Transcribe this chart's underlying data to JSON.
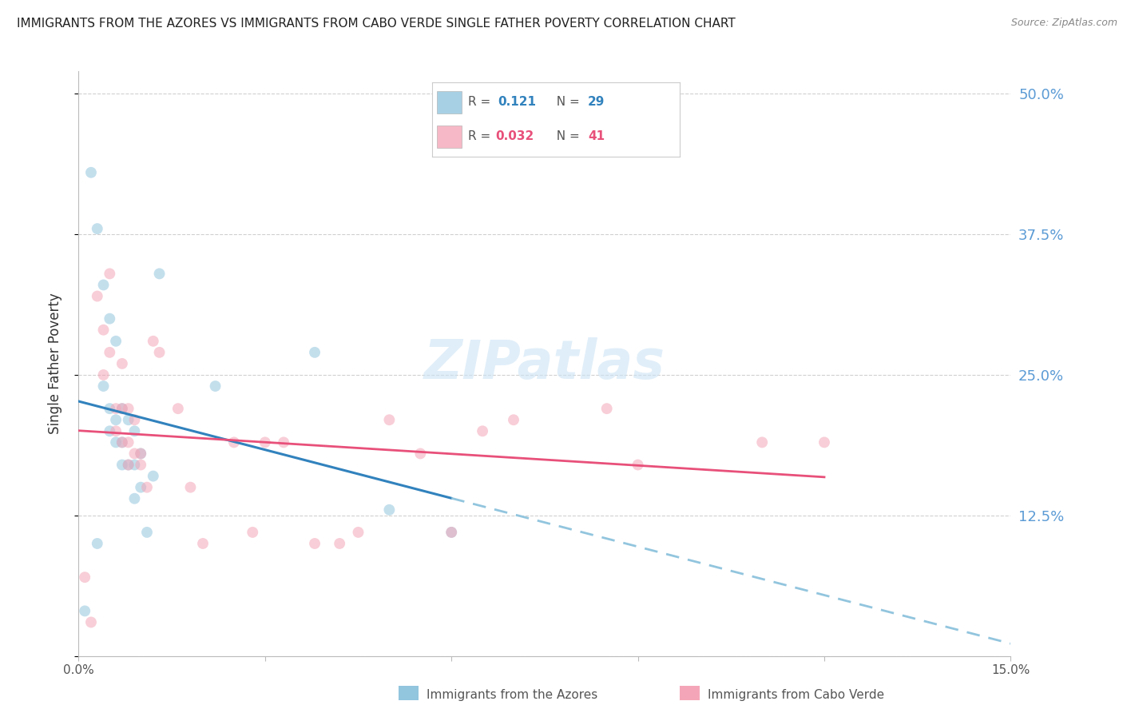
{
  "title": "IMMIGRANTS FROM THE AZORES VS IMMIGRANTS FROM CABO VERDE SINGLE FATHER POVERTY CORRELATION CHART",
  "source": "Source: ZipAtlas.com",
  "ylabel": "Single Father Poverty",
  "y_ticks": [
    0.0,
    0.125,
    0.25,
    0.375,
    0.5
  ],
  "y_tick_labels": [
    "",
    "12.5%",
    "25.0%",
    "37.5%",
    "50.0%"
  ],
  "xlim": [
    0.0,
    0.15
  ],
  "ylim": [
    0.0,
    0.52
  ],
  "watermark": "ZIPatlas",
  "legend_azores_r": "0.121",
  "legend_azores_n": "29",
  "legend_cabo_r": "0.032",
  "legend_cabo_n": "41",
  "azores_color": "#92c5de",
  "cabo_color": "#f4a6b8",
  "trend_azores_color": "#3182bd",
  "trend_cabo_color": "#e8507a",
  "azores_x": [
    0.001,
    0.002,
    0.003,
    0.003,
    0.004,
    0.004,
    0.005,
    0.005,
    0.005,
    0.006,
    0.006,
    0.006,
    0.007,
    0.007,
    0.007,
    0.008,
    0.008,
    0.009,
    0.009,
    0.009,
    0.01,
    0.01,
    0.011,
    0.012,
    0.013,
    0.022,
    0.038,
    0.05,
    0.06
  ],
  "azores_y": [
    0.04,
    0.43,
    0.1,
    0.38,
    0.33,
    0.24,
    0.3,
    0.22,
    0.2,
    0.28,
    0.21,
    0.19,
    0.22,
    0.19,
    0.17,
    0.21,
    0.17,
    0.2,
    0.17,
    0.14,
    0.18,
    0.15,
    0.11,
    0.16,
    0.34,
    0.24,
    0.27,
    0.13,
    0.11
  ],
  "cabo_x": [
    0.001,
    0.002,
    0.003,
    0.004,
    0.004,
    0.005,
    0.005,
    0.006,
    0.006,
    0.007,
    0.007,
    0.007,
    0.008,
    0.008,
    0.008,
    0.009,
    0.009,
    0.01,
    0.01,
    0.011,
    0.012,
    0.013,
    0.016,
    0.018,
    0.02,
    0.025,
    0.028,
    0.03,
    0.033,
    0.038,
    0.042,
    0.045,
    0.05,
    0.055,
    0.06,
    0.065,
    0.07,
    0.085,
    0.09,
    0.11,
    0.12
  ],
  "cabo_y": [
    0.07,
    0.03,
    0.32,
    0.29,
    0.25,
    0.34,
    0.27,
    0.22,
    0.2,
    0.26,
    0.22,
    0.19,
    0.22,
    0.19,
    0.17,
    0.21,
    0.18,
    0.18,
    0.17,
    0.15,
    0.28,
    0.27,
    0.22,
    0.15,
    0.1,
    0.19,
    0.11,
    0.19,
    0.19,
    0.1,
    0.1,
    0.11,
    0.21,
    0.18,
    0.11,
    0.2,
    0.21,
    0.22,
    0.17,
    0.19,
    0.19
  ],
  "background_color": "#ffffff",
  "grid_color": "#d0d0d0",
  "right_axis_color": "#5b9bd5",
  "title_fontsize": 11,
  "marker_size": 100,
  "marker_alpha": 0.55,
  "legend_label_azores": "Immigrants from the Azores",
  "legend_label_cabo": "Immigrants from Cabo Verde"
}
